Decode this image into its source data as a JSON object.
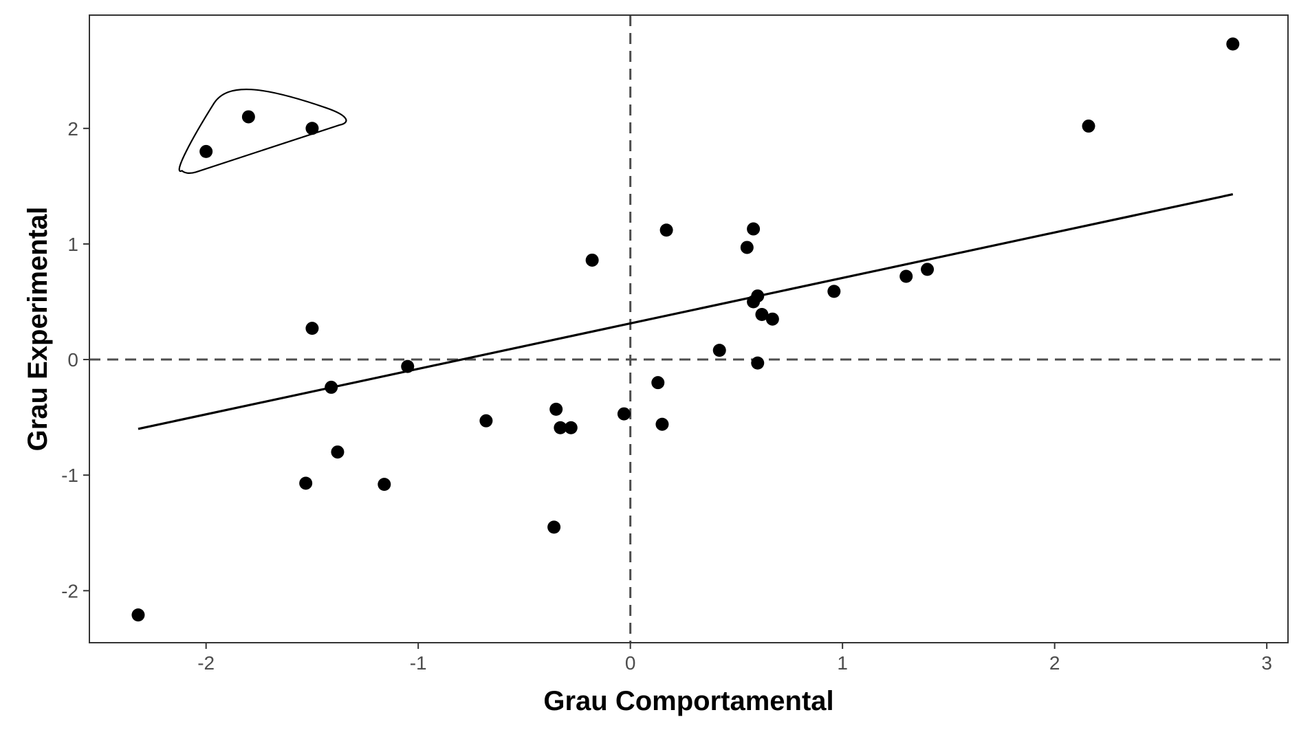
{
  "chart_data": {
    "type": "scatter",
    "title": "",
    "xlabel": "Grau Comportamental",
    "ylabel": "Grau Experimental",
    "xlim": [
      -2.55,
      3.1
    ],
    "ylim": [
      -2.45,
      2.98
    ],
    "x_ticks": [
      -2,
      -1,
      0,
      1,
      2,
      3
    ],
    "x_tick_labels": [
      "-2",
      "-1",
      "0",
      "1",
      "2",
      "3"
    ],
    "y_ticks": [
      -2,
      -1,
      0,
      1,
      2
    ],
    "y_tick_labels": [
      "-2",
      "-1",
      "0",
      "1",
      "2"
    ],
    "grid": false,
    "reference_lines": {
      "x": 0,
      "y": 0,
      "style": "dashed"
    },
    "points": [
      {
        "x": -2.32,
        "y": -2.21
      },
      {
        "x": -2.0,
        "y": 1.8
      },
      {
        "x": -1.8,
        "y": 2.1
      },
      {
        "x": -1.5,
        "y": 2.0
      },
      {
        "x": -1.5,
        "y": 0.27
      },
      {
        "x": -1.41,
        "y": -0.24
      },
      {
        "x": -1.38,
        "y": -0.8
      },
      {
        "x": -1.53,
        "y": -1.07
      },
      {
        "x": -1.16,
        "y": -1.08
      },
      {
        "x": -1.05,
        "y": -0.06
      },
      {
        "x": -0.68,
        "y": -0.53
      },
      {
        "x": -0.35,
        "y": -0.43
      },
      {
        "x": -0.33,
        "y": -0.59
      },
      {
        "x": -0.28,
        "y": -0.59
      },
      {
        "x": -0.36,
        "y": -1.45
      },
      {
        "x": -0.18,
        "y": 0.86
      },
      {
        "x": -0.03,
        "y": -0.47
      },
      {
        "x": 0.13,
        "y": -0.2
      },
      {
        "x": 0.15,
        "y": -0.56
      },
      {
        "x": 0.17,
        "y": 1.12
      },
      {
        "x": 0.42,
        "y": 0.08
      },
      {
        "x": 0.55,
        "y": 0.97
      },
      {
        "x": 0.58,
        "y": 1.13
      },
      {
        "x": 0.58,
        "y": 0.5
      },
      {
        "x": 0.6,
        "y": 0.55
      },
      {
        "x": 0.62,
        "y": 0.39
      },
      {
        "x": 0.6,
        "y": -0.03
      },
      {
        "x": 0.67,
        "y": 0.35
      },
      {
        "x": 0.96,
        "y": 0.59
      },
      {
        "x": 1.3,
        "y": 0.72
      },
      {
        "x": 1.4,
        "y": 0.78
      },
      {
        "x": 2.16,
        "y": 2.02
      },
      {
        "x": 2.84,
        "y": 2.73
      }
    ],
    "trend_line": {
      "x": [
        -2.32,
        2.84
      ],
      "y": [
        -0.6,
        1.43
      ]
    },
    "highlight_group": {
      "shape": "outline",
      "points": [
        [
          -2.0,
          1.8
        ],
        [
          -1.8,
          2.1
        ],
        [
          -1.5,
          2.0
        ]
      ]
    }
  }
}
